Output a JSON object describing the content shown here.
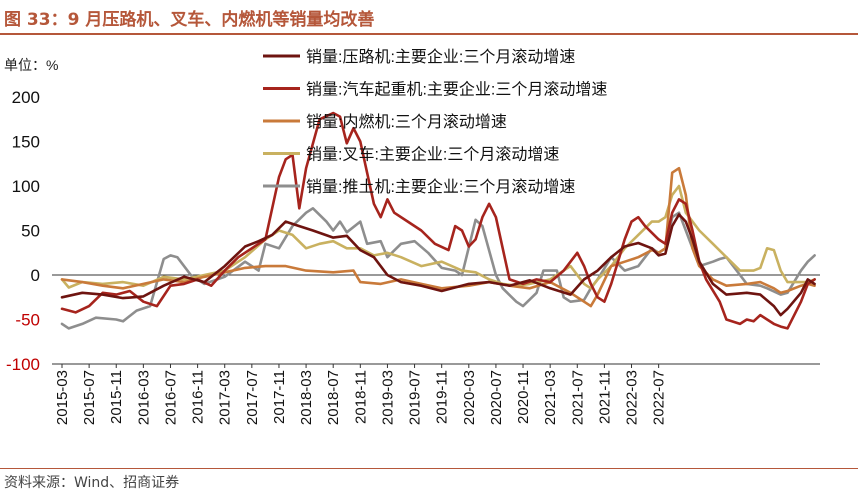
{
  "figure": {
    "title": "图 33：9 月压路机、叉车、内燃机等销量均改善",
    "source": "资料来源：Wind、招商证券"
  },
  "colors": {
    "title": "#b5573a",
    "negative_tick": "#c00000",
    "series": [
      "#6e1410",
      "#a6241d",
      "#c97a3a",
      "#c9b160",
      "#8e8e8e"
    ]
  },
  "chart_data": {
    "type": "line",
    "title": "图 33：9 月压路机、叉车、内燃机等销量均改善",
    "ylabel": "单位：%",
    "xlabel": "",
    "ylim": [
      -100,
      200
    ],
    "yticks": [
      -100,
      -50,
      0,
      50,
      100,
      150,
      200
    ],
    "x_start": "2015-03",
    "x_end": "2022-09",
    "xticks": [
      "2015-03",
      "2015-07",
      "2015-11",
      "2016-03",
      "2016-07",
      "2016-11",
      "2017-03",
      "2017-07",
      "2017-11",
      "2018-03",
      "2018-07",
      "2018-11",
      "2019-03",
      "2019-07",
      "2019-11",
      "2020-03",
      "2020-07",
      "2020-11",
      "2021-03",
      "2021-07",
      "2021-11",
      "2022-03",
      "2022-07"
    ],
    "legend_position": "top-left",
    "grid": false,
    "series": [
      {
        "name": "销量:压路机:主要企业:三个月滚动增速",
        "points": [
          [
            0,
            -25
          ],
          [
            3,
            -20
          ],
          [
            6,
            -22
          ],
          [
            9,
            -26
          ],
          [
            12,
            -24
          ],
          [
            15,
            -12
          ],
          [
            18,
            -2
          ],
          [
            21,
            -8
          ],
          [
            24,
            10
          ],
          [
            27,
            32
          ],
          [
            29,
            38
          ],
          [
            31,
            45
          ],
          [
            33,
            60
          ],
          [
            35,
            55
          ],
          [
            37,
            50
          ],
          [
            40,
            42
          ],
          [
            42,
            44
          ],
          [
            44,
            28
          ],
          [
            46,
            20
          ],
          [
            48,
            0
          ],
          [
            50,
            -8
          ],
          [
            53,
            -12
          ],
          [
            56,
            -18
          ],
          [
            60,
            -10
          ],
          [
            63,
            -8
          ],
          [
            66,
            -12
          ],
          [
            69,
            -6
          ],
          [
            72,
            -15
          ],
          [
            75,
            -22
          ],
          [
            77,
            -5
          ],
          [
            79,
            5
          ],
          [
            81,
            20
          ],
          [
            83,
            32
          ],
          [
            85,
            36
          ],
          [
            87,
            30
          ],
          [
            88,
            22
          ],
          [
            89,
            24
          ],
          [
            90,
            55
          ],
          [
            91,
            68
          ],
          [
            92,
            60
          ],
          [
            93,
            40
          ],
          [
            94,
            15
          ],
          [
            96,
            -10
          ],
          [
            98,
            -22
          ],
          [
            101,
            -20
          ],
          [
            103,
            -22
          ],
          [
            105,
            -35
          ],
          [
            106,
            -45
          ],
          [
            107,
            -38
          ],
          [
            109,
            -20
          ],
          [
            110,
            -5
          ],
          [
            111,
            -10
          ]
        ]
      },
      {
        "name": "销量:汽车起重机:主要企业:三个月滚动增速",
        "points": [
          [
            0,
            -38
          ],
          [
            2,
            -42
          ],
          [
            4,
            -35
          ],
          [
            6,
            -20
          ],
          [
            8,
            -22
          ],
          [
            10,
            -18
          ],
          [
            12,
            -30
          ],
          [
            14,
            -35
          ],
          [
            16,
            -12
          ],
          [
            18,
            -10
          ],
          [
            20,
            -5
          ],
          [
            22,
            -12
          ],
          [
            24,
            5
          ],
          [
            26,
            20
          ],
          [
            28,
            30
          ],
          [
            30,
            40
          ],
          [
            32,
            110
          ],
          [
            33,
            130
          ],
          [
            34,
            135
          ],
          [
            35,
            75
          ],
          [
            36,
            120
          ],
          [
            38,
            175
          ],
          [
            40,
            182
          ],
          [
            41,
            178
          ],
          [
            42,
            148
          ],
          [
            43,
            165
          ],
          [
            44,
            150
          ],
          [
            45,
            115
          ],
          [
            46,
            80
          ],
          [
            47,
            65
          ],
          [
            48,
            85
          ],
          [
            49,
            70
          ],
          [
            51,
            60
          ],
          [
            53,
            50
          ],
          [
            55,
            35
          ],
          [
            57,
            28
          ],
          [
            58,
            55
          ],
          [
            59,
            50
          ],
          [
            60,
            32
          ],
          [
            61,
            40
          ],
          [
            62,
            65
          ],
          [
            63,
            80
          ],
          [
            64,
            65
          ],
          [
            65,
            30
          ],
          [
            66,
            -5
          ],
          [
            68,
            -10
          ],
          [
            70,
            -5
          ],
          [
            72,
            -8
          ],
          [
            74,
            5
          ],
          [
            76,
            25
          ],
          [
            77,
            10
          ],
          [
            78,
            -10
          ],
          [
            79,
            -25
          ],
          [
            80,
            -30
          ],
          [
            81,
            -10
          ],
          [
            82,
            15
          ],
          [
            83,
            40
          ],
          [
            84,
            60
          ],
          [
            85,
            65
          ],
          [
            86,
            55
          ],
          [
            88,
            40
          ],
          [
            89,
            35
          ],
          [
            90,
            70
          ],
          [
            91,
            85
          ],
          [
            92,
            80
          ],
          [
            93,
            50
          ],
          [
            94,
            15
          ],
          [
            95,
            -5
          ],
          [
            97,
            -30
          ],
          [
            98,
            -50
          ],
          [
            100,
            -55
          ],
          [
            101,
            -50
          ],
          [
            102,
            -52
          ],
          [
            103,
            -45
          ],
          [
            104,
            -50
          ],
          [
            105,
            -55
          ],
          [
            106,
            -58
          ],
          [
            107,
            -60
          ],
          [
            109,
            -30
          ],
          [
            110,
            -10
          ],
          [
            111,
            -5
          ]
        ]
      },
      {
        "name": "销量:内燃机:三个月滚动增速",
        "points": [
          [
            0,
            -5
          ],
          [
            3,
            -8
          ],
          [
            6,
            -12
          ],
          [
            9,
            -15
          ],
          [
            12,
            -10
          ],
          [
            15,
            -5
          ],
          [
            18,
            -8
          ],
          [
            21,
            -2
          ],
          [
            24,
            3
          ],
          [
            27,
            8
          ],
          [
            30,
            10
          ],
          [
            33,
            10
          ],
          [
            36,
            5
          ],
          [
            40,
            3
          ],
          [
            43,
            5
          ],
          [
            44,
            -8
          ],
          [
            47,
            -10
          ],
          [
            50,
            -5
          ],
          [
            53,
            -10
          ],
          [
            56,
            -15
          ],
          [
            60,
            -12
          ],
          [
            63,
            -8
          ],
          [
            66,
            -12
          ],
          [
            69,
            -15
          ],
          [
            72,
            -8
          ],
          [
            75,
            -20
          ],
          [
            77,
            -30
          ],
          [
            78,
            -35
          ],
          [
            79,
            -22
          ],
          [
            81,
            10
          ],
          [
            83,
            15
          ],
          [
            85,
            20
          ],
          [
            87,
            28
          ],
          [
            88,
            25
          ],
          [
            89,
            30
          ],
          [
            90,
            115
          ],
          [
            91,
            120
          ],
          [
            92,
            90
          ],
          [
            93,
            30
          ],
          [
            94,
            10
          ],
          [
            96,
            -5
          ],
          [
            98,
            -12
          ],
          [
            101,
            -10
          ],
          [
            103,
            -8
          ],
          [
            105,
            -15
          ],
          [
            106,
            -20
          ],
          [
            107,
            -18
          ],
          [
            109,
            -12
          ],
          [
            110,
            -10
          ],
          [
            111,
            -12
          ]
        ]
      },
      {
        "name": "销量:叉车:主要企业:三个月滚动增速",
        "points": [
          [
            0,
            -5
          ],
          [
            1,
            -14
          ],
          [
            3,
            -8
          ],
          [
            6,
            -10
          ],
          [
            9,
            -8
          ],
          [
            12,
            -12
          ],
          [
            15,
            -2
          ],
          [
            18,
            -5
          ],
          [
            21,
            0
          ],
          [
            24,
            5
          ],
          [
            27,
            20
          ],
          [
            30,
            40
          ],
          [
            32,
            50
          ],
          [
            34,
            45
          ],
          [
            36,
            30
          ],
          [
            38,
            35
          ],
          [
            40,
            38
          ],
          [
            42,
            30
          ],
          [
            44,
            30
          ],
          [
            46,
            22
          ],
          [
            48,
            25
          ],
          [
            50,
            20
          ],
          [
            53,
            10
          ],
          [
            56,
            15
          ],
          [
            59,
            5
          ],
          [
            61,
            3
          ],
          [
            63,
            -5
          ],
          [
            65,
            -10
          ],
          [
            67,
            -12
          ],
          [
            69,
            -10
          ],
          [
            72,
            -5
          ],
          [
            75,
            10
          ],
          [
            77,
            -10
          ],
          [
            78,
            -15
          ],
          [
            79,
            -5
          ],
          [
            81,
            10
          ],
          [
            83,
            30
          ],
          [
            85,
            45
          ],
          [
            87,
            60
          ],
          [
            88,
            60
          ],
          [
            89,
            65
          ],
          [
            90,
            90
          ],
          [
            91,
            100
          ],
          [
            92,
            70
          ],
          [
            94,
            50
          ],
          [
            96,
            35
          ],
          [
            98,
            20
          ],
          [
            100,
            5
          ],
          [
            102,
            5
          ],
          [
            103,
            8
          ],
          [
            104,
            30
          ],
          [
            105,
            28
          ],
          [
            106,
            5
          ],
          [
            107,
            -8
          ],
          [
            109,
            -8
          ],
          [
            110,
            -8
          ],
          [
            111,
            -5
          ]
        ]
      },
      {
        "name": "销量:推土机:主要企业:三个月滚动增速",
        "points": [
          [
            0,
            -55
          ],
          [
            1,
            -60
          ],
          [
            3,
            -55
          ],
          [
            5,
            -48
          ],
          [
            8,
            -50
          ],
          [
            9,
            -52
          ],
          [
            11,
            -40
          ],
          [
            13,
            -35
          ],
          [
            15,
            18
          ],
          [
            16,
            22
          ],
          [
            17,
            20
          ],
          [
            19,
            0
          ],
          [
            21,
            -10
          ],
          [
            24,
            -2
          ],
          [
            27,
            15
          ],
          [
            29,
            5
          ],
          [
            30,
            35
          ],
          [
            32,
            30
          ],
          [
            34,
            55
          ],
          [
            36,
            70
          ],
          [
            37,
            75
          ],
          [
            39,
            60
          ],
          [
            40,
            50
          ],
          [
            41,
            60
          ],
          [
            42,
            48
          ],
          [
            44,
            60
          ],
          [
            45,
            35
          ],
          [
            47,
            38
          ],
          [
            48,
            20
          ],
          [
            50,
            35
          ],
          [
            52,
            38
          ],
          [
            54,
            25
          ],
          [
            56,
            8
          ],
          [
            58,
            5
          ],
          [
            59,
            0
          ],
          [
            61,
            62
          ],
          [
            62,
            55
          ],
          [
            64,
            0
          ],
          [
            65,
            -15
          ],
          [
            67,
            -30
          ],
          [
            68,
            -35
          ],
          [
            70,
            -20
          ],
          [
            71,
            5
          ],
          [
            73,
            5
          ],
          [
            74,
            -25
          ],
          [
            75,
            -30
          ],
          [
            77,
            -28
          ],
          [
            78,
            -15
          ],
          [
            79,
            -5
          ],
          [
            81,
            20
          ],
          [
            83,
            5
          ],
          [
            85,
            10
          ],
          [
            86,
            20
          ],
          [
            87,
            30
          ],
          [
            88,
            25
          ],
          [
            89,
            30
          ],
          [
            90,
            65
          ],
          [
            91,
            70
          ],
          [
            92,
            50
          ],
          [
            94,
            10
          ],
          [
            96,
            15
          ],
          [
            97,
            18
          ],
          [
            98,
            20
          ],
          [
            100,
            0
          ],
          [
            101,
            -10
          ],
          [
            103,
            -12
          ],
          [
            104,
            -15
          ],
          [
            106,
            -22
          ],
          [
            107,
            -20
          ],
          [
            109,
            5
          ],
          [
            110,
            15
          ],
          [
            111,
            22
          ]
        ]
      }
    ]
  }
}
